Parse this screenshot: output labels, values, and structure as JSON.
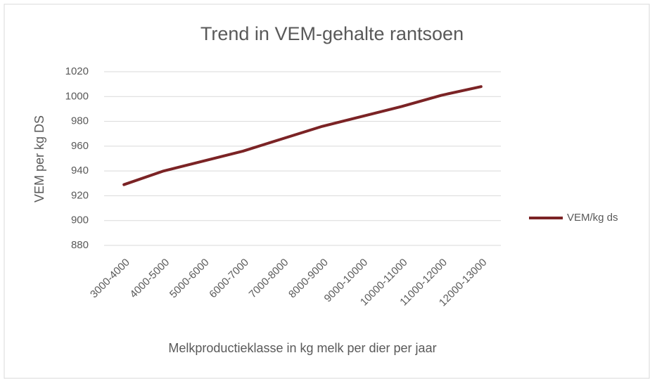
{
  "chart_data": {
    "type": "line",
    "title": "Trend in VEM-gehalte rantsoen",
    "xlabel": "Melkproductieklasse in kg melk per dier per jaar",
    "ylabel": "VEM per kg DS",
    "categories": [
      "3000-4000",
      "4000-5000",
      "5000-6000",
      "6000-7000",
      "7000-8000",
      "8000-9000",
      "9000-10000",
      "10000-11000",
      "11000-12000",
      "12000-13000"
    ],
    "series": [
      {
        "name": "VEM/kg ds",
        "color": "#7b2325",
        "values": [
          929,
          940,
          948,
          956,
          966,
          976,
          984,
          992,
          1001,
          1008
        ]
      }
    ],
    "ylim": [
      880,
      1020
    ],
    "yticks": [
      880,
      900,
      920,
      940,
      960,
      980,
      1000,
      1020
    ],
    "grid": true,
    "legend": "right"
  }
}
